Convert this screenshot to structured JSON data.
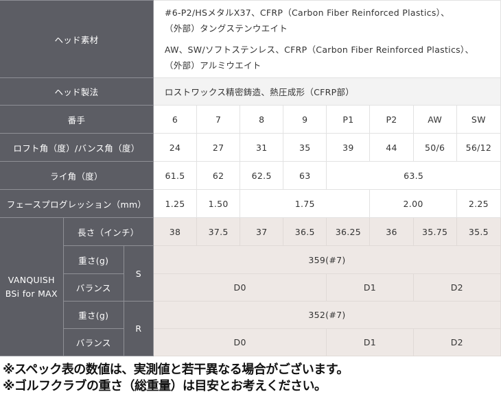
{
  "head_material": {
    "label": "ヘッド素材",
    "line1": "#6-P2/HSメタルX37、CFRP（Carbon Fiber Reinforced Plastics）、",
    "line2": "（外部）タングステンウエイト",
    "line3": "AW、SW/ソフトステンレス、CFRP（Carbon Fiber Reinforced Plastics）、",
    "line4": "（外部）アルミウエイト"
  },
  "head_manufacturing": {
    "label": "ヘッド製法",
    "value": "ロストワックス精密鋳造、熱圧成形（CFRP部）"
  },
  "number": {
    "label": "番手",
    "values": [
      "6",
      "7",
      "8",
      "9",
      "P1",
      "P2",
      "AW",
      "SW"
    ]
  },
  "loft": {
    "label": "ロフト角（度）/バンス角（度）",
    "values": [
      "24",
      "27",
      "31",
      "35",
      "39",
      "44",
      "50/6",
      "56/12"
    ]
  },
  "lie": {
    "label": "ライ角（度）",
    "values": [
      "61.5",
      "62",
      "62.5",
      "63",
      "63.5"
    ]
  },
  "face_progression": {
    "label": "フェースプログレッション（mm）",
    "values": [
      "1.25",
      "1.50",
      "1.75",
      "2.00",
      "2.25"
    ]
  },
  "shaft": {
    "name": "VANQUISH BSi for MAX",
    "length": {
      "label": "長さ（インチ）",
      "values": [
        "38",
        "37.5",
        "37",
        "36.5",
        "36.25",
        "36",
        "35.75",
        "35.5"
      ]
    },
    "flex_s": {
      "flex": "S",
      "weight_label": "重さ(g)",
      "weight": "359(#7)",
      "balance_label": "バランス",
      "balance": [
        "D0",
        "D1",
        "D2"
      ]
    },
    "flex_r": {
      "flex": "R",
      "weight_label": "重さ(g)",
      "weight": "352(#7)",
      "balance_label": "バランス",
      "balance": [
        "D0",
        "D1",
        "D2"
      ]
    }
  },
  "notes": [
    "※スペック表の数値は、実測値と若干異なる場合がございます。",
    "※ゴルフクラブの重さ（総重量）は目安とお考えください。"
  ]
}
